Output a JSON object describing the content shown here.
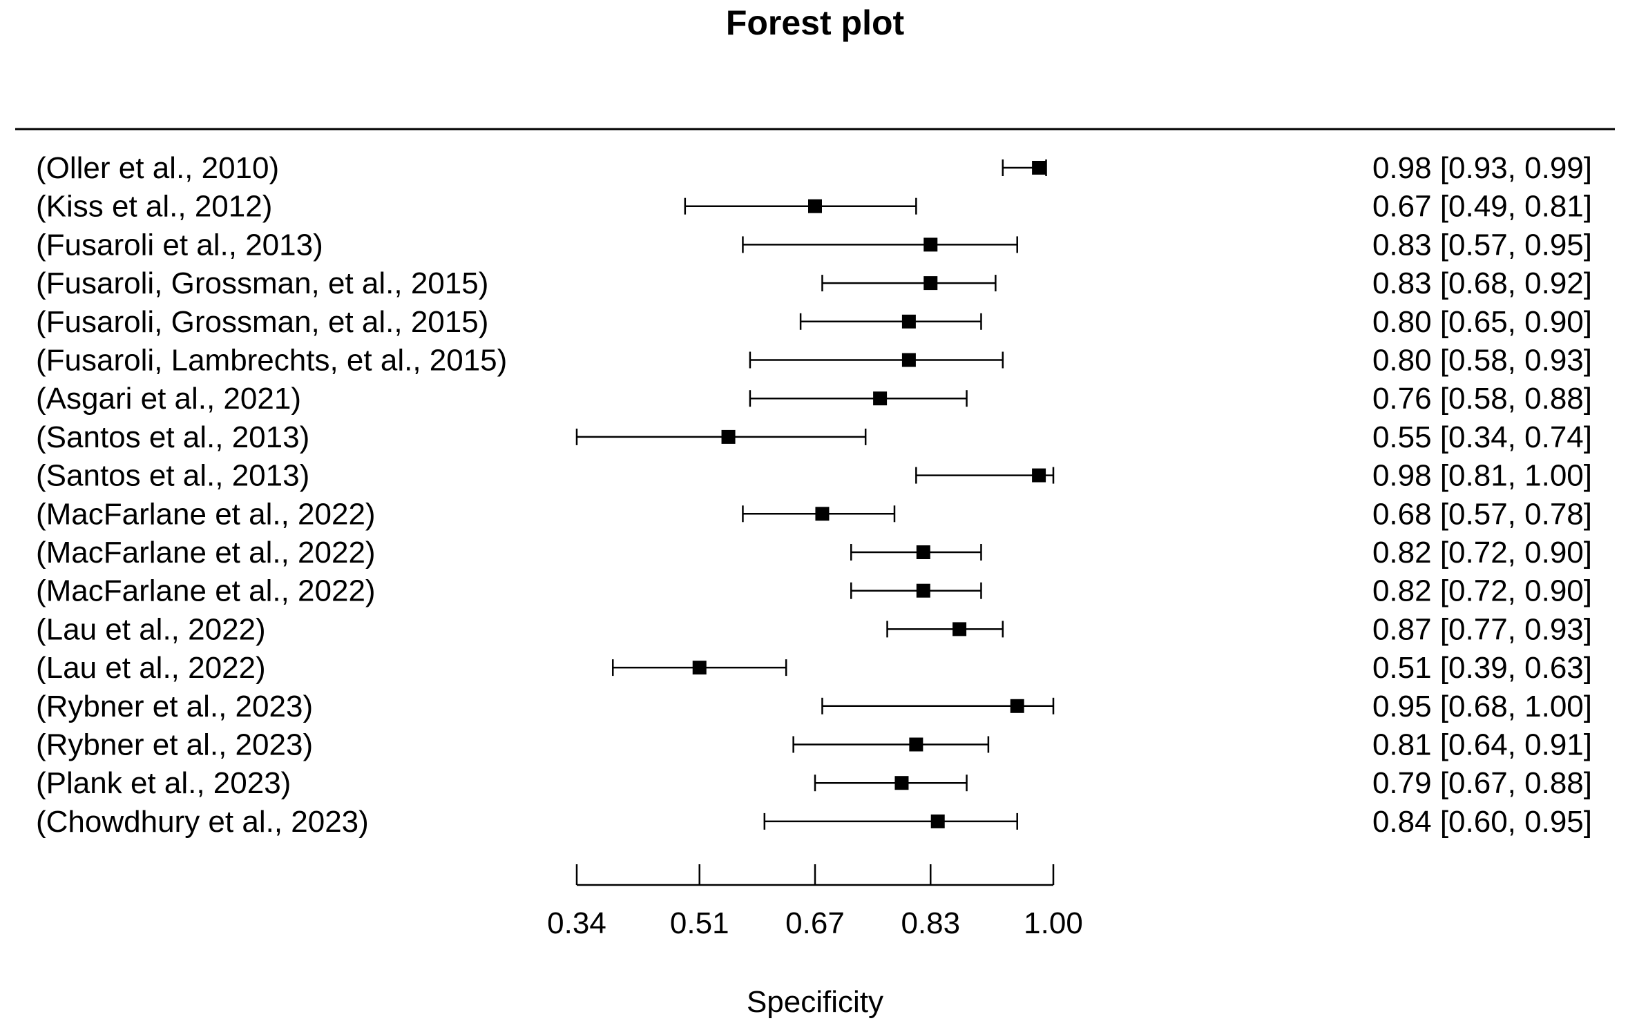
{
  "chart_data": {
    "type": "forest",
    "title": "Forest plot",
    "xlabel": "Specificity",
    "ticks": [
      0.34,
      0.51,
      0.67,
      0.83,
      1.0
    ],
    "tick_labels": [
      "0.34",
      "0.51",
      "0.67",
      "0.83",
      "1.00"
    ],
    "xlim": [
      0.34,
      1.0
    ],
    "grid": false,
    "rows": [
      {
        "study": "(Oller et al., 2010)",
        "estimate": 0.98,
        "lower": 0.93,
        "upper": 0.99,
        "label": "0.98 [0.93, 0.99]"
      },
      {
        "study": "(Kiss et al., 2012)",
        "estimate": 0.67,
        "lower": 0.49,
        "upper": 0.81,
        "label": "0.67 [0.49, 0.81]"
      },
      {
        "study": "(Fusaroli et al., 2013)",
        "estimate": 0.83,
        "lower": 0.57,
        "upper": 0.95,
        "label": "0.83 [0.57, 0.95]"
      },
      {
        "study": "(Fusaroli, Grossman, et al., 2015)",
        "estimate": 0.83,
        "lower": 0.68,
        "upper": 0.92,
        "label": "0.83 [0.68, 0.92]"
      },
      {
        "study": "(Fusaroli, Grossman, et al., 2015)",
        "estimate": 0.8,
        "lower": 0.65,
        "upper": 0.9,
        "label": "0.80 [0.65, 0.90]"
      },
      {
        "study": "(Fusaroli, Lambrechts, et al., 2015)",
        "estimate": 0.8,
        "lower": 0.58,
        "upper": 0.93,
        "label": "0.80 [0.58, 0.93]"
      },
      {
        "study": "(Asgari et al., 2021)",
        "estimate": 0.76,
        "lower": 0.58,
        "upper": 0.88,
        "label": "0.76 [0.58, 0.88]"
      },
      {
        "study": "(Santos et al., 2013)",
        "estimate": 0.55,
        "lower": 0.34,
        "upper": 0.74,
        "label": "0.55 [0.34, 0.74]"
      },
      {
        "study": "(Santos et al., 2013)",
        "estimate": 0.98,
        "lower": 0.81,
        "upper": 1.0,
        "label": "0.98 [0.81, 1.00]"
      },
      {
        "study": "(MacFarlane et al., 2022)",
        "estimate": 0.68,
        "lower": 0.57,
        "upper": 0.78,
        "label": "0.68 [0.57, 0.78]"
      },
      {
        "study": "(MacFarlane et al., 2022)",
        "estimate": 0.82,
        "lower": 0.72,
        "upper": 0.9,
        "label": "0.82 [0.72, 0.90]"
      },
      {
        "study": "(MacFarlane et al., 2022)",
        "estimate": 0.82,
        "lower": 0.72,
        "upper": 0.9,
        "label": "0.82 [0.72, 0.90]"
      },
      {
        "study": "(Lau et al., 2022)",
        "estimate": 0.87,
        "lower": 0.77,
        "upper": 0.93,
        "label": "0.87 [0.77, 0.93]"
      },
      {
        "study": "(Lau et al., 2022)",
        "estimate": 0.51,
        "lower": 0.39,
        "upper": 0.63,
        "label": "0.51 [0.39, 0.63]"
      },
      {
        "study": "(Rybner et al., 2023)",
        "estimate": 0.95,
        "lower": 0.68,
        "upper": 1.0,
        "label": "0.95 [0.68, 1.00]"
      },
      {
        "study": "(Rybner et al., 2023)",
        "estimate": 0.81,
        "lower": 0.64,
        "upper": 0.91,
        "label": "0.81 [0.64, 0.91]"
      },
      {
        "study": "(Plank et al., 2023)",
        "estimate": 0.79,
        "lower": 0.67,
        "upper": 0.88,
        "label": "0.79 [0.67, 0.88]"
      },
      {
        "study": "(Chowdhury et al., 2023)",
        "estimate": 0.84,
        "lower": 0.6,
        "upper": 0.95,
        "label": "0.84 [0.60, 0.95]"
      }
    ]
  }
}
